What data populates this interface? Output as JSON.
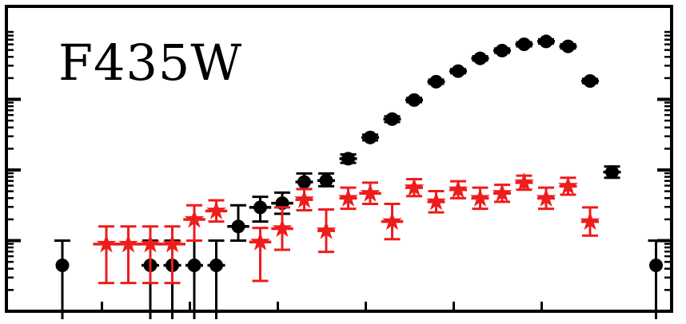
{
  "chart_data": {
    "type": "scatter",
    "title": "",
    "xlabel": "",
    "ylabel": "",
    "y_scale": "log",
    "xlim": [
      0,
      14
    ],
    "ylim": [
      0,
      4
    ],
    "y_major_ticks": [
      1,
      2,
      3
    ],
    "x_major_ticks": [
      2,
      4,
      6,
      8,
      10,
      12
    ],
    "grid": false,
    "legend": "none",
    "annotations": [
      {
        "text": "F435W",
        "position": "top-left"
      }
    ],
    "series": [
      {
        "color": "#000000",
        "marker": "circle",
        "points": [
          {
            "x": 1.1,
            "y": 0.65,
            "xerr": 0.0,
            "yerr_lo": 0.8,
            "yerr_hi": 0.35
          },
          {
            "x": 3.1,
            "y": 0.65,
            "xerr": 0.2,
            "yerr_lo": 0.8,
            "yerr_hi": 0.35
          },
          {
            "x": 3.6,
            "y": 0.65,
            "xerr": 0.2,
            "yerr_lo": 0.8,
            "yerr_hi": 0.35
          },
          {
            "x": 4.1,
            "y": 0.65,
            "xerr": 0.2,
            "yerr_lo": 0.8,
            "yerr_hi": 0.35
          },
          {
            "x": 4.6,
            "y": 0.65,
            "xerr": 0.2,
            "yerr_lo": 0.8,
            "yerr_hi": 0.35
          },
          {
            "x": 5.1,
            "y": 1.2,
            "xerr": 0.25,
            "yerr_lo": 0.2,
            "yerr_hi": 0.3
          },
          {
            "x": 5.6,
            "y": 1.47,
            "xerr": 0.25,
            "yerr_lo": 0.2,
            "yerr_hi": 0.15
          },
          {
            "x": 6.1,
            "y": 1.53,
            "xerr": 0.25,
            "yerr_lo": 0.15,
            "yerr_hi": 0.15
          },
          {
            "x": 6.6,
            "y": 1.83,
            "xerr": 0.2,
            "yerr_lo": 0.1,
            "yerr_hi": 0.12
          },
          {
            "x": 7.1,
            "y": 1.85,
            "xerr": 0.2,
            "yerr_lo": 0.08,
            "yerr_hi": 0.1
          },
          {
            "x": 7.6,
            "y": 2.16,
            "xerr": 0.2,
            "yerr_lo": 0.06,
            "yerr_hi": 0.06
          },
          {
            "x": 8.1,
            "y": 2.46,
            "xerr": 0.2,
            "yerr_lo": 0.04,
            "yerr_hi": 0.04
          },
          {
            "x": 8.6,
            "y": 2.72,
            "xerr": 0.2,
            "yerr_lo": 0.04,
            "yerr_hi": 0.04
          },
          {
            "x": 9.1,
            "y": 2.99,
            "xerr": 0.2,
            "yerr_lo": 0.03,
            "yerr_hi": 0.03
          },
          {
            "x": 9.6,
            "y": 3.25,
            "xerr": 0.2,
            "yerr_lo": 0.03,
            "yerr_hi": 0.03
          },
          {
            "x": 10.1,
            "y": 3.4,
            "xerr": 0.2,
            "yerr_lo": 0.03,
            "yerr_hi": 0.03
          },
          {
            "x": 10.6,
            "y": 3.58,
            "xerr": 0.2,
            "yerr_lo": 0.03,
            "yerr_hi": 0.03
          },
          {
            "x": 11.1,
            "y": 3.69,
            "xerr": 0.2,
            "yerr_lo": 0.03,
            "yerr_hi": 0.03
          },
          {
            "x": 11.6,
            "y": 3.78,
            "xerr": 0.2,
            "yerr_lo": 0.03,
            "yerr_hi": 0.03
          },
          {
            "x": 12.1,
            "y": 3.82,
            "xerr": 0.2,
            "yerr_lo": 0.03,
            "yerr_hi": 0.03
          },
          {
            "x": 12.6,
            "y": 3.75,
            "xerr": 0.2,
            "yerr_lo": 0.03,
            "yerr_hi": 0.03
          },
          {
            "x": 13.1,
            "y": 3.26,
            "xerr": 0.2,
            "yerr_lo": 0.03,
            "yerr_hi": 0.03
          },
          {
            "x": 13.6,
            "y": 1.97,
            "xerr": 0.2,
            "yerr_lo": 0.08,
            "yerr_hi": 0.08
          },
          {
            "x": 14.6,
            "y": 0.65,
            "xerr": 0.0,
            "yerr_lo": 0.8,
            "yerr_hi": 0.35
          }
        ]
      },
      {
        "color": "#ee1c1c",
        "marker": "star",
        "points": [
          {
            "x": 2.1,
            "y": 0.95,
            "xerr": 0.3,
            "yerr_lo": 0.55,
            "yerr_hi": 0.25
          },
          {
            "x": 2.6,
            "y": 0.95,
            "xerr": 0.3,
            "yerr_lo": 0.55,
            "yerr_hi": 0.25
          },
          {
            "x": 3.1,
            "y": 0.95,
            "xerr": 0.3,
            "yerr_lo": 0.55,
            "yerr_hi": 0.25
          },
          {
            "x": 3.6,
            "y": 0.95,
            "xerr": 0.3,
            "yerr_lo": 0.55,
            "yerr_hi": 0.25
          },
          {
            "x": 4.1,
            "y": 1.3,
            "xerr": 0.25,
            "yerr_lo": 0.3,
            "yerr_hi": 0.2
          },
          {
            "x": 4.6,
            "y": 1.42,
            "xerr": 0.25,
            "yerr_lo": 0.15,
            "yerr_hi": 0.15
          },
          {
            "x": 5.6,
            "y": 0.98,
            "xerr": 0.25,
            "yerr_lo": 0.55,
            "yerr_hi": 0.2
          },
          {
            "x": 6.1,
            "y": 1.17,
            "xerr": 0.25,
            "yerr_lo": 0.3,
            "yerr_hi": 0.3
          },
          {
            "x": 6.6,
            "y": 1.58,
            "xerr": 0.2,
            "yerr_lo": 0.15,
            "yerr_hi": 0.15
          },
          {
            "x": 7.1,
            "y": 1.14,
            "xerr": 0.2,
            "yerr_lo": 0.3,
            "yerr_hi": 0.3
          },
          {
            "x": 7.6,
            "y": 1.6,
            "xerr": 0.2,
            "yerr_lo": 0.15,
            "yerr_hi": 0.15
          },
          {
            "x": 8.1,
            "y": 1.67,
            "xerr": 0.25,
            "yerr_lo": 0.15,
            "yerr_hi": 0.15
          },
          {
            "x": 8.6,
            "y": 1.27,
            "xerr": 0.25,
            "yerr_lo": 0.25,
            "yerr_hi": 0.25
          },
          {
            "x": 9.1,
            "y": 1.75,
            "xerr": 0.2,
            "yerr_lo": 0.12,
            "yerr_hi": 0.12
          },
          {
            "x": 9.6,
            "y": 1.55,
            "xerr": 0.2,
            "yerr_lo": 0.15,
            "yerr_hi": 0.15
          },
          {
            "x": 10.1,
            "y": 1.72,
            "xerr": 0.2,
            "yerr_lo": 0.12,
            "yerr_hi": 0.12
          },
          {
            "x": 10.6,
            "y": 1.6,
            "xerr": 0.2,
            "yerr_lo": 0.15,
            "yerr_hi": 0.15
          },
          {
            "x": 11.1,
            "y": 1.67,
            "xerr": 0.2,
            "yerr_lo": 0.12,
            "yerr_hi": 0.12
          },
          {
            "x": 11.6,
            "y": 1.82,
            "xerr": 0.2,
            "yerr_lo": 0.1,
            "yerr_hi": 0.1
          },
          {
            "x": 12.1,
            "y": 1.6,
            "xerr": 0.2,
            "yerr_lo": 0.15,
            "yerr_hi": 0.15
          },
          {
            "x": 12.6,
            "y": 1.77,
            "xerr": 0.2,
            "yerr_lo": 0.12,
            "yerr_hi": 0.12
          },
          {
            "x": 13.1,
            "y": 1.27,
            "xerr": 0.2,
            "yerr_lo": 0.2,
            "yerr_hi": 0.2
          }
        ]
      }
    ]
  }
}
